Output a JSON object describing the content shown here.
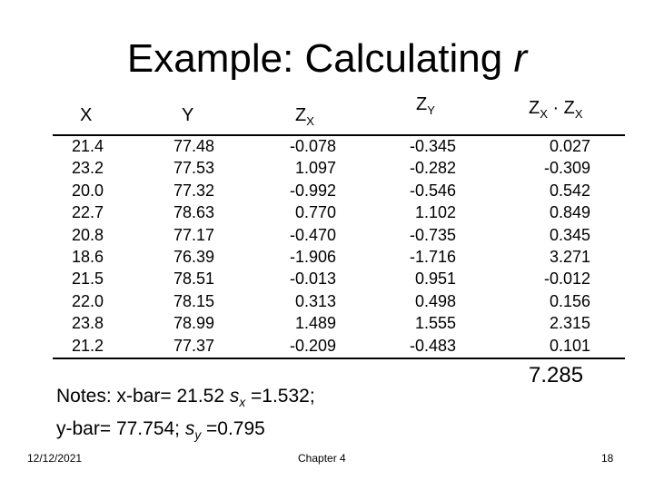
{
  "title": {
    "text": "Example: Calculating ",
    "var": "r"
  },
  "headers": {
    "x": "X",
    "y": "Y",
    "zx": "Z",
    "zx_sub": "X",
    "zy": "Z",
    "zy_sub": "Y",
    "prod_a": "Z",
    "prod_a_sub": "X",
    "prod_dot": " · ",
    "prod_b": "Z",
    "prod_b_sub": "X"
  },
  "table": {
    "X": [
      "21.4",
      "23.2",
      "20.0",
      "22.7",
      "20.8",
      "18.6",
      "21.5",
      "22.0",
      "23.8",
      "21.2"
    ],
    "Y": [
      "77.48",
      "77.53",
      "77.32",
      "78.63",
      "77.17",
      "76.39",
      "78.51",
      "78.15",
      "78.99",
      "77.37"
    ],
    "ZX": [
      "-0.078",
      "1.097",
      "-0.992",
      "0.770",
      "-0.470",
      "-1.906",
      "-0.013",
      "0.313",
      "1.489",
      "-0.209"
    ],
    "ZY": [
      "-0.345",
      "-0.282",
      "-0.546",
      "1.102",
      "-0.735",
      "-1.716",
      "0.951",
      "0.498",
      "1.555",
      "-0.483"
    ],
    "ZXZY": [
      "0.027",
      "-0.309",
      "0.542",
      "0.849",
      "0.345",
      "3.271",
      "-0.012",
      "0.156",
      "2.315",
      "0.101"
    ]
  },
  "sum": "7.285",
  "notes": {
    "line1_a": "Notes: x-bar= 21.52 ",
    "line1_s": "s",
    "line1_sub": "x",
    "line1_b": " =1.532;",
    "line2_a": "y-bar= 77.754; ",
    "line2_s": "s",
    "line2_sub": "y",
    "line2_b": " =0.795"
  },
  "footer": {
    "date": "12/12/2021",
    "center": "Chapter 4",
    "page": "18"
  }
}
